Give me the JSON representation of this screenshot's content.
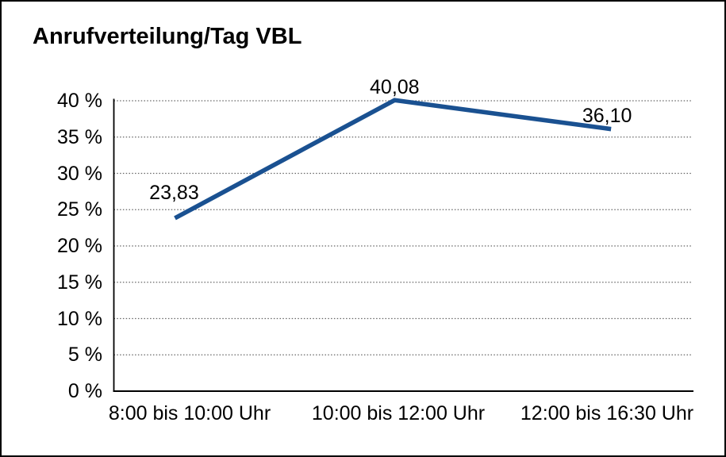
{
  "title": "Anrufverteilung/Tag VBL",
  "chart_data": {
    "type": "line",
    "title": "Anrufverteilung/Tag VBL",
    "categories": [
      "8:00 bis 10:00 Uhr",
      "10:00 bis 12:00 Uhr",
      "12:00 bis 16:30 Uhr"
    ],
    "values": [
      23.83,
      40.08,
      36.1
    ],
    "data_labels": [
      "23,83",
      "40,08",
      "36,10"
    ],
    "ytick_labels": [
      "0 %",
      "5 %",
      "10 %",
      "15 %",
      "20 %",
      "25 %",
      "30 %",
      "35 %",
      "40 %"
    ],
    "ylim": [
      0,
      40
    ],
    "ytick_step": 5,
    "xlabel": "",
    "ylabel": "",
    "grid": "horizontal-dotted",
    "legend": "none",
    "line_color": "#1A5191"
  },
  "colors": {
    "line": "#1A5191",
    "axis": "#000000",
    "gridline": "#666666",
    "text": "#000000",
    "background": "#FFFFFF",
    "border": "#000000"
  }
}
